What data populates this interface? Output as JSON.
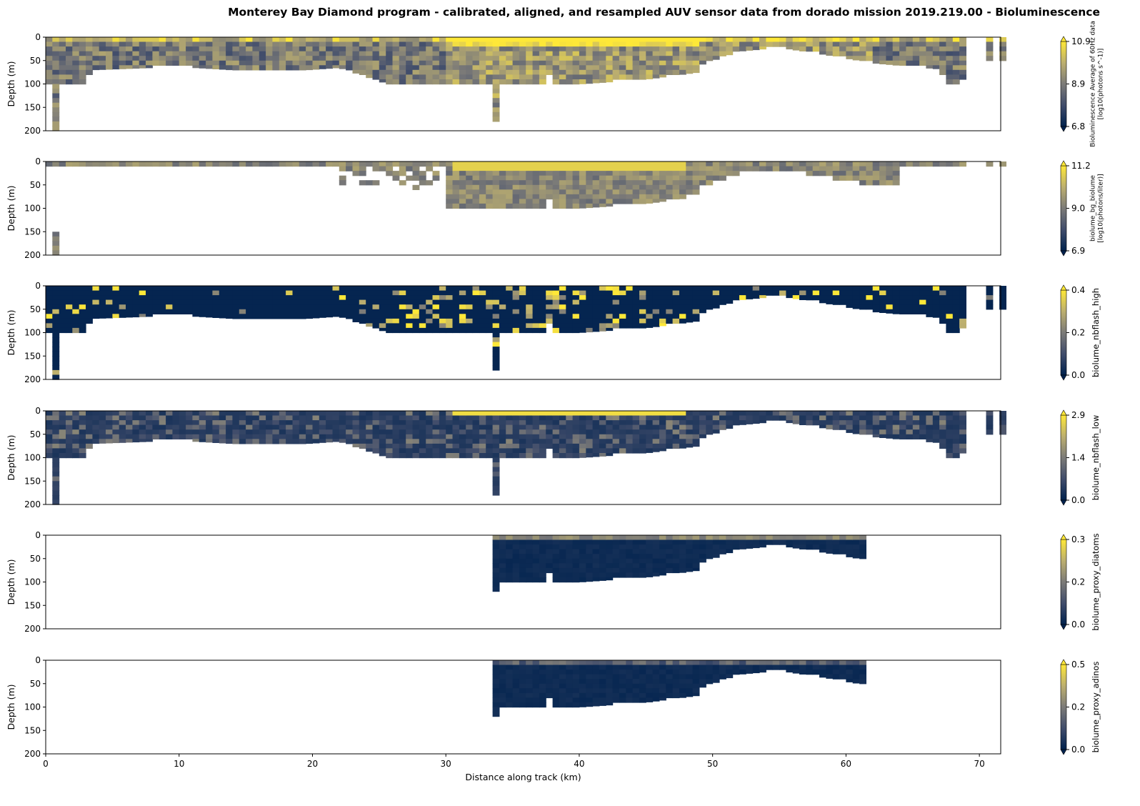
{
  "title": "Monterey Bay Diamond program - calibrated, aligned, and resampled AUV sensor data from dorado mission 2019.219.00 - Bioluminescence",
  "chart_data": {
    "type": "heatmap",
    "xlabel": "Distance along track (km)",
    "ylabel": "Depth (m)",
    "xlim": [
      0,
      71.6
    ],
    "ylim": [
      200,
      0
    ],
    "xticks": [
      "0",
      "10",
      "20",
      "30",
      "40",
      "50",
      "60",
      "70"
    ],
    "yticks": [
      "0",
      "50",
      "100",
      "150",
      "200"
    ],
    "colormap": "cividis",
    "colormap_stops": [
      "#00224e",
      "#414d6b",
      "#7c7b78",
      "#bcaf6f",
      "#fee838"
    ],
    "bottom_profile": {
      "x_km": [
        0,
        0.5,
        0.6,
        1,
        1.1,
        3.2,
        3.3,
        10,
        17,
        22,
        26,
        30,
        33.6,
        33.7,
        34,
        37.7,
        37.8,
        37.9,
        40,
        45,
        48.9,
        49,
        50,
        52,
        55,
        58,
        62,
        67,
        67.5,
        68.5,
        69,
        69.2
      ],
      "depth_m": [
        100,
        100,
        200,
        200,
        100,
        100,
        70,
        63,
        75,
        65,
        103,
        100,
        100,
        200,
        100,
        100,
        60,
        100,
        100,
        90,
        75,
        60,
        50,
        30,
        22,
        35,
        55,
        68,
        100,
        100,
        80,
        60
      ]
    },
    "panels": [
      {
        "name": "bioluminescence",
        "label_lines": [
          "Bioluminescence Average of 60Hz data",
          "[log10(photons s^-1)]"
        ],
        "range": [
          6.8,
          10.9
        ],
        "ticks": [
          "6.8",
          "8.9",
          "10.9"
        ],
        "x_extent_km": [
          0,
          71.6
        ]
      },
      {
        "name": "biolume_bg_biolume",
        "label_lines": [
          "biolume_bg_biolume",
          "[log10(photons/liter)]"
        ],
        "range": [
          6.9,
          11.2
        ],
        "ticks": [
          "6.9",
          "9.0",
          "11.2"
        ],
        "x_extent_km": [
          0,
          71.6
        ]
      },
      {
        "name": "biolume_nbflash_high",
        "label_lines": [
          "biolume_nbflash_high"
        ],
        "range": [
          0.0,
          0.4
        ],
        "ticks": [
          "0.0",
          "0.2",
          "0.4"
        ],
        "x_extent_km": [
          0,
          71.6
        ]
      },
      {
        "name": "biolume_nbflash_low",
        "label_lines": [
          "biolume_nbflash_low"
        ],
        "range": [
          0.0,
          2.9
        ],
        "ticks": [
          "0.0",
          "1.4",
          "2.9"
        ],
        "x_extent_km": [
          0,
          71.6
        ]
      },
      {
        "name": "biolume_proxy_diatoms",
        "label_lines": [
          "biolume_proxy_diatoms"
        ],
        "range": [
          0.0,
          0.3
        ],
        "ticks": [
          "0.0",
          "0.2",
          "0.3"
        ],
        "x_extent_km": [
          33.5,
          61.6
        ]
      },
      {
        "name": "biolume_proxy_adinos",
        "label_lines": [
          "biolume_proxy_adinos"
        ],
        "range": [
          0.0,
          0.5
        ],
        "ticks": [
          "0.0",
          "0.2",
          "0.5"
        ],
        "x_extent_km": [
          33.5,
          61.6
        ]
      }
    ]
  }
}
